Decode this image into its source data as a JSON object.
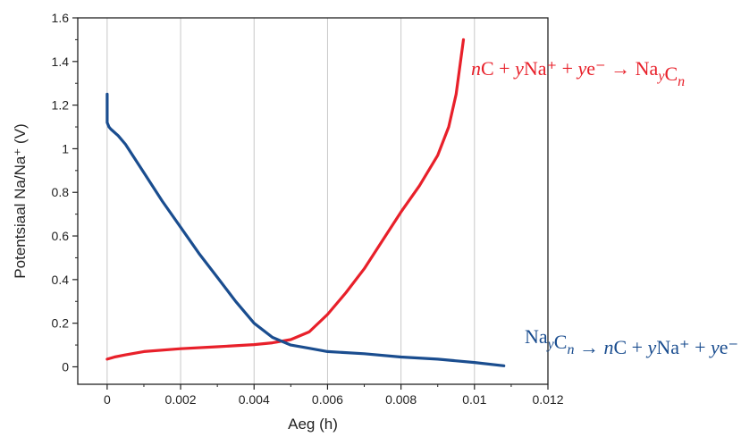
{
  "chart_data": {
    "type": "line",
    "title": "",
    "xlabel": "Aeg (h)",
    "ylabel": "Potentsiaal Na/Na⁺ (V)",
    "xlim": [
      -0.0008,
      0.012
    ],
    "ylim": [
      -0.08,
      1.6
    ],
    "x_ticks": [
      0,
      0.002,
      0.004,
      0.006,
      0.008,
      0.01,
      0.012
    ],
    "x_tick_labels": [
      "0",
      "0.002",
      "0.004",
      "0.006",
      "0.008",
      "0.01",
      "0.012"
    ],
    "y_ticks": [
      0,
      0.2,
      0.4,
      0.6,
      0.8,
      1,
      1.2,
      1.4,
      1.6
    ],
    "y_tick_labels": [
      "0",
      "0.2",
      "0.4",
      "0.6",
      "0.8",
      "1",
      "1.2",
      "1.4",
      "1.6"
    ],
    "grid": "vertical",
    "legend": "none",
    "series": [
      {
        "color": "#e8202a",
        "x": [
          0,
          0.0002,
          0.0005,
          0.001,
          0.002,
          0.003,
          0.004,
          0.0045,
          0.005,
          0.0055,
          0.006,
          0.0065,
          0.007,
          0.0075,
          0.008,
          0.0085,
          0.009,
          0.0093,
          0.0095,
          0.0097
        ],
        "y": [
          0.035,
          0.045,
          0.055,
          0.07,
          0.083,
          0.092,
          0.102,
          0.11,
          0.125,
          0.16,
          0.24,
          0.34,
          0.45,
          0.58,
          0.71,
          0.83,
          0.97,
          1.1,
          1.25,
          1.5
        ]
      },
      {
        "color": "#1a4d8f",
        "x": [
          0,
          0.0,
          0.0,
          5e-05,
          0.0001,
          0.0003,
          0.0005,
          0.001,
          0.0015,
          0.002,
          0.0025,
          0.003,
          0.0035,
          0.004,
          0.0045,
          0.005,
          0.0055,
          0.006,
          0.007,
          0.008,
          0.009,
          0.01,
          0.0108
        ],
        "y": [
          1.25,
          1.15,
          1.12,
          1.1,
          1.09,
          1.06,
          1.02,
          0.89,
          0.76,
          0.64,
          0.52,
          0.41,
          0.3,
          0.2,
          0.135,
          0.1,
          0.085,
          0.07,
          0.06,
          0.045,
          0.035,
          0.02,
          0.005
        ]
      }
    ],
    "annotations": [
      {
        "color": "#e8202a",
        "parts": [
          {
            "t": "n",
            "it": true,
            "sub": false
          },
          {
            "t": "C + ",
            "it": false,
            "sub": false
          },
          {
            "t": "y",
            "it": true,
            "sub": false
          },
          {
            "t": "Na⁺ + ",
            "it": false,
            "sub": false
          },
          {
            "t": "y",
            "it": true,
            "sub": false
          },
          {
            "t": "e⁻ → Na",
            "it": false,
            "sub": false
          },
          {
            "t": "y",
            "it": true,
            "sub": true
          },
          {
            "t": "C",
            "it": false,
            "sub": false
          },
          {
            "t": "n",
            "it": true,
            "sub": true
          }
        ]
      },
      {
        "color": "#1a4d8f",
        "parts": [
          {
            "t": "Na",
            "it": false,
            "sub": false
          },
          {
            "t": "y",
            "it": true,
            "sub": true
          },
          {
            "t": "C",
            "it": false,
            "sub": false
          },
          {
            "t": "n",
            "it": true,
            "sub": true
          },
          {
            "t": " → ",
            "it": false,
            "sub": false
          },
          {
            "t": "n",
            "it": true,
            "sub": false
          },
          {
            "t": "C + ",
            "it": false,
            "sub": false
          },
          {
            "t": "y",
            "it": true,
            "sub": false
          },
          {
            "t": "Na⁺ + ",
            "it": false,
            "sub": false
          },
          {
            "t": "y",
            "it": true,
            "sub": false
          },
          {
            "t": "e⁻",
            "it": false,
            "sub": false
          }
        ]
      }
    ]
  }
}
